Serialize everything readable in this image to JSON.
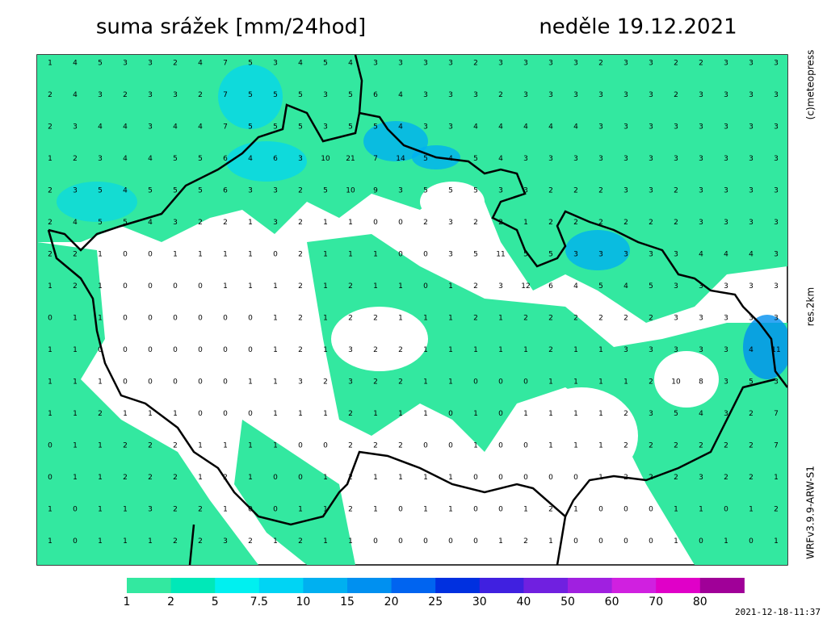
{
  "header": {
    "title": "suma srážek [mm/24hod]",
    "date": "neděle 19.12.2021"
  },
  "side": {
    "copyright": "(c)meteopress",
    "resolution": "res.2km",
    "model": "WRFv3.9.9-ARW-S1"
  },
  "timestamp": "2021-12-18-11:37",
  "legend": {
    "labels": [
      1,
      2,
      5,
      7.5,
      10,
      15,
      20,
      25,
      30,
      40,
      50,
      60,
      70,
      80
    ],
    "colors": [
      "#33e8a0",
      "#00e8b8",
      "#00f0f0",
      "#00d4f4",
      "#00b0f0",
      "#0090f0",
      "#0064f0",
      "#0030e0",
      "#4020e0",
      "#7020e0",
      "#a020e0",
      "#d020e0",
      "#e000c8",
      "#a00098"
    ]
  },
  "grid": {
    "rows": [
      [
        1,
        4,
        5,
        3,
        3,
        2,
        4,
        7,
        5,
        3,
        4,
        5,
        4,
        3,
        3,
        3,
        3,
        2,
        3,
        3,
        3,
        3,
        2,
        3,
        3,
        2,
        2,
        3,
        3,
        3
      ],
      [
        2,
        4,
        3,
        2,
        3,
        3,
        2,
        7,
        5,
        5,
        5,
        3,
        5,
        6,
        4,
        3,
        3,
        3,
        2,
        3,
        3,
        3,
        3,
        3,
        3,
        2,
        3,
        3,
        3,
        3
      ],
      [
        2,
        3,
        4,
        4,
        3,
        4,
        4,
        7,
        5,
        5,
        5,
        3,
        5,
        5,
        4,
        3,
        3,
        4,
        4,
        4,
        4,
        4,
        3,
        3,
        3,
        3,
        3,
        3,
        3,
        3
      ],
      [
        1,
        2,
        3,
        4,
        4,
        5,
        5,
        6,
        4,
        6,
        3,
        10,
        21,
        7,
        14,
        5,
        4,
        5,
        4,
        3,
        3,
        3,
        3,
        3,
        3,
        3,
        3,
        3,
        3,
        3
      ],
      [
        2,
        3,
        5,
        4,
        5,
        5,
        5,
        6,
        3,
        3,
        2,
        5,
        10,
        9,
        3,
        5,
        5,
        5,
        3,
        3,
        2,
        2,
        2,
        3,
        3,
        2,
        3,
        3,
        3,
        3
      ],
      [
        2,
        4,
        5,
        5,
        4,
        3,
        2,
        2,
        1,
        3,
        2,
        1,
        1,
        0,
        0,
        2,
        3,
        2,
        2,
        1,
        2,
        2,
        2,
        2,
        2,
        2,
        3,
        3,
        3,
        3
      ],
      [
        2,
        2,
        1,
        0,
        0,
        1,
        1,
        1,
        1,
        0,
        2,
        1,
        1,
        1,
        0,
        0,
        3,
        5,
        11,
        5,
        5,
        3,
        3,
        3,
        3,
        3,
        4,
        4,
        4,
        3
      ],
      [
        1,
        2,
        1,
        0,
        0,
        0,
        0,
        1,
        1,
        1,
        2,
        1,
        2,
        1,
        1,
        0,
        1,
        2,
        3,
        12,
        6,
        4,
        5,
        4,
        5,
        3,
        3,
        3,
        3,
        3
      ],
      [
        0,
        1,
        1,
        0,
        0,
        0,
        0,
        0,
        0,
        1,
        2,
        1,
        2,
        2,
        1,
        1,
        1,
        2,
        1,
        2,
        2,
        2,
        2,
        2,
        2,
        3,
        3,
        3,
        3,
        3
      ],
      [
        1,
        1,
        0,
        0,
        0,
        0,
        0,
        0,
        0,
        1,
        2,
        1,
        3,
        2,
        2,
        1,
        1,
        1,
        1,
        1,
        2,
        1,
        1,
        3,
        3,
        3,
        3,
        3,
        4,
        11
      ],
      [
        1,
        1,
        1,
        0,
        0,
        0,
        0,
        0,
        1,
        1,
        3,
        2,
        3,
        2,
        2,
        1,
        1,
        0,
        0,
        0,
        1,
        1,
        1,
        1,
        2,
        10,
        8,
        3,
        5,
        3
      ],
      [
        1,
        1,
        2,
        1,
        1,
        1,
        0,
        0,
        0,
        1,
        1,
        1,
        2,
        1,
        1,
        1,
        0,
        1,
        0,
        1,
        1,
        1,
        1,
        2,
        3,
        5,
        4,
        3,
        2,
        7
      ],
      [
        0,
        1,
        1,
        2,
        2,
        2,
        1,
        1,
        1,
        1,
        0,
        0,
        2,
        2,
        2,
        0,
        0,
        1,
        0,
        0,
        1,
        1,
        1,
        2,
        2,
        2,
        2,
        2,
        2,
        7
      ],
      [
        0,
        1,
        1,
        2,
        2,
        2,
        1,
        2,
        1,
        0,
        0,
        1,
        2,
        1,
        1,
        1,
        1,
        0,
        0,
        0,
        0,
        0,
        1,
        2,
        2,
        2,
        3,
        2,
        2,
        1
      ],
      [
        1,
        0,
        1,
        1,
        3,
        2,
        2,
        1,
        0,
        0,
        1,
        1,
        2,
        1,
        0,
        1,
        1,
        0,
        0,
        1,
        2,
        1,
        0,
        0,
        0,
        1,
        1,
        0,
        1,
        2
      ],
      [
        1,
        0,
        1,
        1,
        1,
        2,
        2,
        3,
        2,
        1,
        2,
        1,
        1,
        0,
        0,
        0,
        0,
        0,
        1,
        2,
        1,
        0,
        0,
        0,
        0,
        1,
        0,
        1,
        0,
        1
      ]
    ]
  }
}
